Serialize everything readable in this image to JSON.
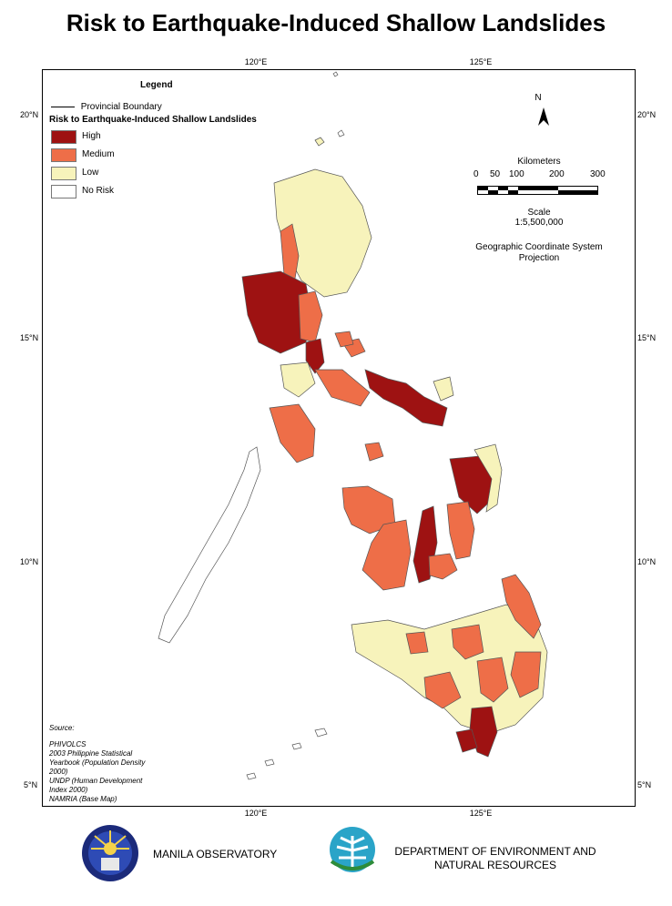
{
  "title": "Risk to Earthquake-Induced Shallow Landslides",
  "ticks": {
    "lon_top": [
      "120°E",
      "125°E"
    ],
    "lon_bottom": [
      "120°E",
      "125°E"
    ],
    "lat_left": [
      "20°N",
      "15°N",
      "10°N",
      "5°N"
    ],
    "lat_right": [
      "20°N",
      "15°N",
      "10°N",
      "5°N"
    ]
  },
  "legend": {
    "title": "Legend",
    "boundary_label": "Provincial Boundary",
    "subtitle": "Risk to Earthquake-Induced Shallow Landslides",
    "items": [
      {
        "label": "High",
        "color": "#9e1212"
      },
      {
        "label": "Medium",
        "color": "#ee6e48"
      },
      {
        "label": "Low",
        "color": "#f7f3bb"
      },
      {
        "label": "No Risk",
        "color": "#ffffff"
      }
    ]
  },
  "north_label": "N",
  "scale": {
    "title": "Kilometers",
    "ticks": [
      "0",
      "50",
      "100",
      "200",
      "300"
    ],
    "scale_label": "Scale",
    "ratio": "1:5,500,000",
    "coord_system_line1": "Geographic Coordinate System",
    "coord_system_line2": "Projection"
  },
  "source": {
    "heading": "Source:",
    "lines": [
      "PHIVOLCS",
      "2003 Philippine Statistical",
      "Yearbook (Population Density",
      "2000)",
      "UNDP (Human Development",
      "Index 2000)",
      "NAMRIA (Base Map)"
    ]
  },
  "orgs": {
    "manila_observatory": "MANILA OBSERVATORY",
    "denr_line1": "DEPARTMENT OF ENVIRONMENT AND",
    "denr_line2": "NATURAL RESOURCES"
  }
}
